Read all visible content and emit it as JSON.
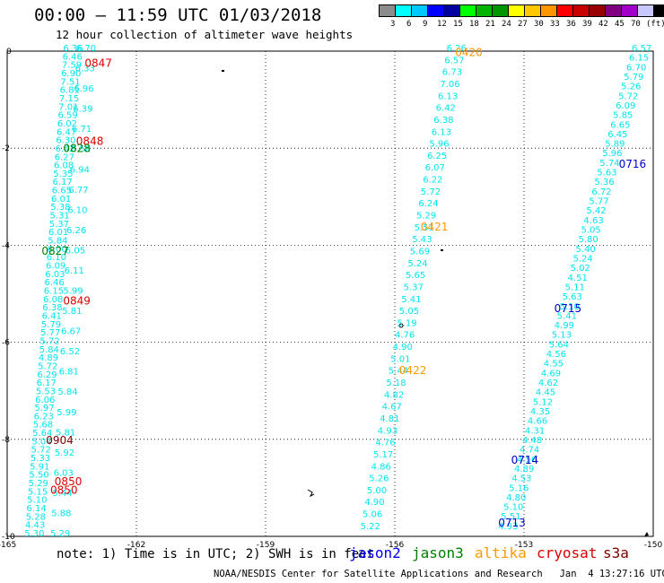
{
  "header": {
    "title": "00:00 – 11:59 UTC 01/03/2018",
    "subtitle": "12 hour collection of altimeter wave heights"
  },
  "scale": {
    "colors": [
      "#8c8c8c",
      "#00ffff",
      "#00c8ff",
      "#0000ff",
      "#0000a0",
      "#00ff00",
      "#00b400",
      "#009600",
      "#ffff00",
      "#ffc800",
      "#ff9600",
      "#ff0000",
      "#c80000",
      "#960000",
      "#800080",
      "#a000c8",
      "#c8c8ff",
      "#000000"
    ],
    "labels": [
      "3",
      "6",
      "9",
      "12",
      "15",
      "18",
      "21",
      "24",
      "27",
      "30",
      "33",
      "36",
      "39",
      "42",
      "45",
      "70",
      "(ft)"
    ]
  },
  "map": {
    "x_ticks": [
      "-165",
      "-162",
      "-159",
      "-156",
      "-153",
      "-150"
    ],
    "y_ticks": [
      "0",
      "-2",
      "-4",
      "-6",
      "-8",
      "-10"
    ],
    "lon_range": [
      -165,
      -150
    ],
    "lat_range": [
      -10,
      0
    ]
  },
  "tracks": [
    {
      "id": "t1",
      "color": "#00e5ee",
      "lat0": -10,
      "lat1": 0,
      "lon0": -164.6,
      "lon1": -163.7,
      "values": [
        "5.30",
        "4.43",
        "5.28",
        "6.14",
        "5.10",
        "5.15",
        "5.29",
        "5.50",
        "5.91",
        "5.33",
        "5.72",
        "5.04",
        "5.64",
        "5.68",
        "6.23",
        "5.97",
        "6.06",
        "5.53",
        "6.17",
        "6.29",
        "5.72",
        "4.89",
        "5.84",
        "5.72",
        "5.77",
        "5.79",
        "6.41",
        "6.38",
        "6.08",
        "6.15",
        "6.46",
        "6.03",
        "6.09",
        "6.10",
        "6.00",
        "5.84",
        "6.01",
        "5.37",
        "5.31",
        "5.38",
        "6.01",
        "6.65",
        "6.17",
        "5.35",
        "6.08",
        "6.27",
        "6.42",
        "6.30",
        "6.47",
        "6.02",
        "6.59",
        "7.01",
        "7.15",
        "6.81",
        "7.51",
        "6.90",
        "7.59",
        "6.46",
        "6.36"
      ]
    },
    {
      "id": "t2",
      "color": "#00e5ee",
      "lat0": -10,
      "lat1": 0,
      "lon0": -164.0,
      "lon1": -163.4,
      "values": [
        "5.29",
        "5.88",
        "5.44",
        "6.03",
        "5.92",
        "5.81",
        "5.99",
        "5.84",
        "6.81",
        "6.52",
        "6.67",
        "5.81",
        "5.99",
        "6.11",
        "6.05",
        "6.26",
        "6.10",
        "6.77",
        "6.94",
        "6.58",
        "6.71",
        "6.39",
        "6.96",
        "6.33",
        "6.70"
      ]
    },
    {
      "id": "t3",
      "color": "#00e5ee",
      "lat0": -9.85,
      "lat1": 0,
      "lon0": -156.8,
      "lon1": -154.8,
      "values": [
        "5.22",
        "5.06",
        "4.90",
        "5.00",
        "5.26",
        "4.86",
        "5.17",
        "4.76",
        "4.93",
        "4.81",
        "4.67",
        "4.82",
        "5.18",
        "5.44",
        "5.01",
        "4.90",
        "4.76",
        "5.19",
        "5.05",
        "5.41",
        "5.37",
        "5.65",
        "5.24",
        "5.69",
        "5.43",
        "5.51",
        "5.29",
        "6.24",
        "5.72",
        "6.22",
        "6.07",
        "6.25",
        "5.96",
        "6.13",
        "6.38",
        "6.42",
        "6.13",
        "7.06",
        "6.73",
        "6.57",
        "6.26"
      ]
    },
    {
      "id": "t4",
      "color": "#00e5ee",
      "lat0": -9.85,
      "lat1": 0,
      "lon0": -153.6,
      "lon1": -150.5,
      "values": [
        "4.93",
        "5.51",
        "5.10",
        "4.80",
        "5.16",
        "4.53",
        "4.89",
        "4.56",
        "4.74",
        "4.48",
        "4.31",
        "4.66",
        "4.35",
        "5.12",
        "4.45",
        "4.62",
        "4.69",
        "4.55",
        "4.56",
        "5.64",
        "5.13",
        "4.99",
        "5.41",
        "5.10",
        "5.63",
        "5.11",
        "4.51",
        "5.02",
        "5.24",
        "5.40",
        "5.80",
        "5.05",
        "4.63",
        "5.42",
        "5.77",
        "6.72",
        "5.36",
        "5.63",
        "5.74",
        "5.96",
        "5.89",
        "6.45",
        "6.65",
        "5.85",
        "6.09",
        "5.72",
        "5.26",
        "5.79",
        "6.70",
        "6.15",
        "6.57"
      ]
    }
  ],
  "time_labels": [
    {
      "text": "0847",
      "color": "#dd0000",
      "lat": -0.32,
      "lon": -163.2
    },
    {
      "text": "0848",
      "color": "#dd0000",
      "lat": -1.93,
      "lon": -163.4
    },
    {
      "text": "0828",
      "color": "#008000",
      "lat": -2.08,
      "lon": -163.7
    },
    {
      "text": "0827",
      "color": "#008000",
      "lat": -4.2,
      "lon": -164.2
    },
    {
      "text": "0849",
      "color": "#dd0000",
      "lat": -5.22,
      "lon": -163.7
    },
    {
      "text": "0904",
      "color": "#800000",
      "lat": -8.1,
      "lon": -164.1
    },
    {
      "text": "0850",
      "color": "#dd0000",
      "lat": -8.95,
      "lon": -163.9
    },
    {
      "text": "0850",
      "color": "#dd0000",
      "lat": -9.12,
      "lon": -164.0
    },
    {
      "text": "0420",
      "color": "#ff9900",
      "lat": -0.1,
      "lon": -154.6
    },
    {
      "text": "0421",
      "color": "#ff9900",
      "lat": -3.7,
      "lon": -155.4
    },
    {
      "text": "0422",
      "color": "#ff9900",
      "lat": -6.65,
      "lon": -155.9
    },
    {
      "text": "0716",
      "color": "#0000cc",
      "lat": -2.4,
      "lon": -150.8
    },
    {
      "text": "0715",
      "color": "#0000cc",
      "lat": -5.38,
      "lon": -152.3
    },
    {
      "text": "0714",
      "color": "#0000cc",
      "lat": -8.5,
      "lon": -153.3
    },
    {
      "text": "0713",
      "color": "#0000cc",
      "lat": -9.8,
      "lon": -153.6
    }
  ],
  "note": "note: 1) Time is in UTC; 2) SWH is in feet",
  "satellites": [
    {
      "name": "jason2",
      "color": "#0000ff"
    },
    {
      "name": "jason3",
      "color": "#008000"
    },
    {
      "name": "altika",
      "color": "#ff9900"
    },
    {
      "name": "cryosat",
      "color": "#dd0000"
    },
    {
      "name": "s3a",
      "color": "#800000"
    }
  ],
  "footer": "NOAA/NESDIS Center for Satellite Applications and Research   Jan  4 13:27:16 UTC 2018"
}
